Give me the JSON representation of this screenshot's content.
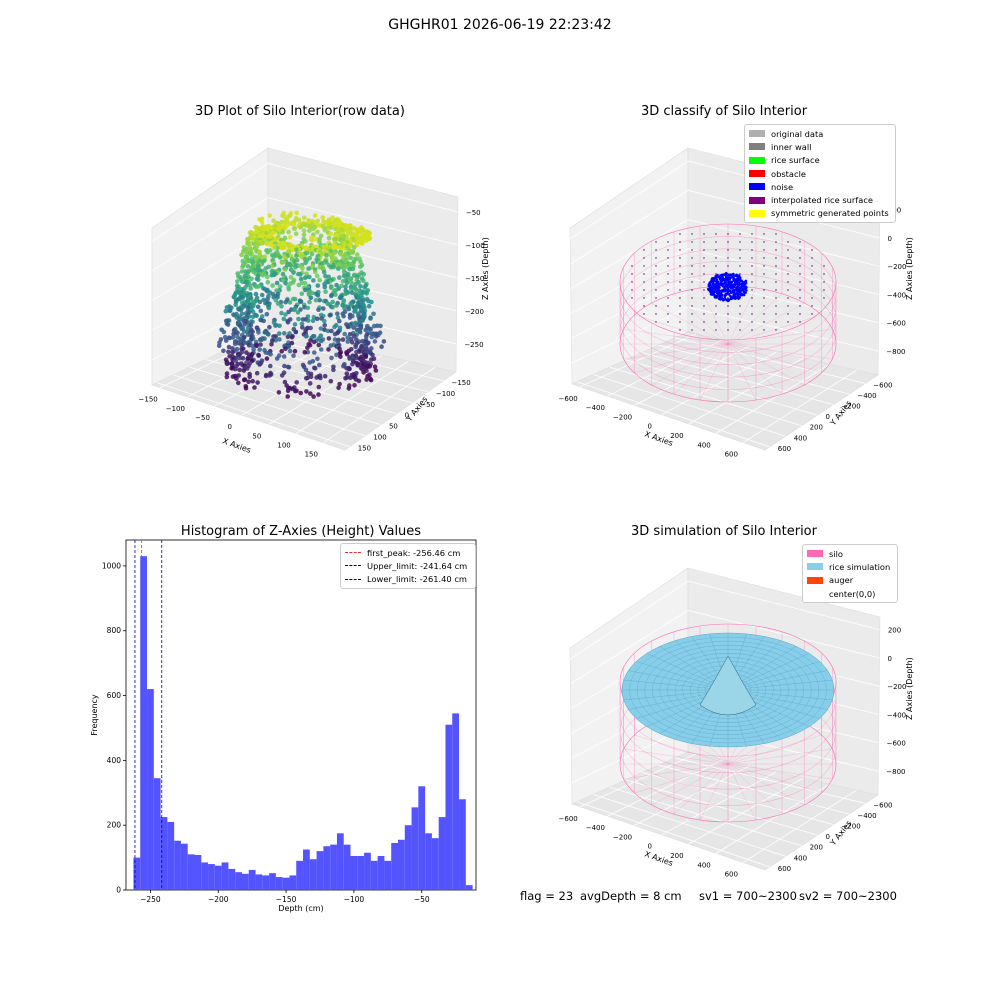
{
  "figure": {
    "suptitle": "GHGHR01 2026-06-19 22:23:42",
    "status": {
      "flag": "flag = 23",
      "avg_depth": "avgDepth = 8 cm",
      "sv1": "sv1 = 700~2300",
      "sv2": "sv2 = 700~2300"
    }
  },
  "colors": {
    "silo": "#ff69b4",
    "rice_simulation": "#87ceeb",
    "auger": "#ff4500",
    "hist_bar": "#4b4bff",
    "first_peak": "#e03030",
    "limits": "#0000aa"
  },
  "chart_data": [
    {
      "type": "scatter",
      "title": "3D Plot of Silo Interior(row data)",
      "xlabel": "X Axies",
      "ylabel": "Y Axies",
      "zlabel": "Z Axies (Depth)",
      "x_ticks": [
        "−150",
        "−100",
        "−50",
        "0",
        "50",
        "100",
        "150"
      ],
      "y_ticks": [
        "−150",
        "−100",
        "−50",
        "0",
        "50",
        "100",
        "150"
      ],
      "z_ticks": [
        "−50",
        "−100",
        "−150",
        "−200",
        "−250"
      ],
      "xlim": [
        -150,
        150
      ],
      "ylim": [
        -150,
        150
      ],
      "zlim": [
        -270,
        -30
      ],
      "colormap": "viridis"
    },
    {
      "type": "scatter",
      "title": "3D classify of Silo Interior",
      "xlabel": "X Axies",
      "ylabel": "Y Axies",
      "zlabel": "Z Axies (Depth)",
      "x_ticks": [
        "−600",
        "−400",
        "−200",
        "0",
        "200",
        "400",
        "600"
      ],
      "y_ticks": [
        "−600",
        "−400",
        "−200",
        "0",
        "200",
        "400",
        "600"
      ],
      "z_ticks": [
        "200",
        "0",
        "−200",
        "−400",
        "−600",
        "−800"
      ],
      "legend": [
        {
          "label": "original data",
          "color": "#b0b0b0"
        },
        {
          "label": "inner wall",
          "color": "#808080"
        },
        {
          "label": "rice surface",
          "color": "#00ff00"
        },
        {
          "label": "obstacle",
          "color": "#ff0000"
        },
        {
          "label": "noise",
          "color": "#0000ff"
        },
        {
          "label": "interpolated rice surface",
          "color": "#800080"
        },
        {
          "label": "symmetric generated points",
          "color": "#ffff00"
        }
      ]
    },
    {
      "type": "bar",
      "title": "Histogram of Z-Axies (Height) Values",
      "xlabel": "Depth (cm)",
      "ylabel": "Frequency",
      "xlim": [
        -268,
        -10
      ],
      "ylim": [
        0,
        1080
      ],
      "x_ticks": [
        -250,
        -200,
        -150,
        -100,
        -50
      ],
      "y_ticks": [
        0,
        200,
        400,
        600,
        800,
        1000
      ],
      "bin_width": 5,
      "bin_start": [
        -262.5,
        -257.5,
        -252.5,
        -247.5,
        -242.5,
        -237.5,
        -232.5,
        -227.5,
        -222.5,
        -217.5,
        -212.5,
        -207.5,
        -202.5,
        -197.5,
        -192.5,
        -187.5,
        -182.5,
        -177.5,
        -172.5,
        -167.5,
        -162.5,
        -157.5,
        -152.5,
        -147.5,
        -142.5,
        -137.5,
        -132.5,
        -127.5,
        -122.5,
        -117.5,
        -112.5,
        -107.5,
        -102.5,
        -97.5,
        -92.5,
        -87.5,
        -82.5,
        -77.5,
        -72.5,
        -67.5,
        -62.5,
        -57.5,
        -52.5,
        -47.5,
        -42.5,
        -37.5,
        -32.5,
        -27.5,
        -22.5,
        -17.5
      ],
      "values": [
        100,
        1030,
        620,
        345,
        225,
        210,
        152,
        143,
        110,
        108,
        85,
        80,
        75,
        85,
        65,
        55,
        50,
        62,
        48,
        45,
        52,
        40,
        38,
        45,
        90,
        125,
        95,
        120,
        135,
        140,
        175,
        140,
        105,
        105,
        115,
        90,
        105,
        90,
        145,
        155,
        200,
        255,
        320,
        175,
        160,
        225,
        510,
        545,
        280,
        15
      ],
      "vlines": [
        {
          "label": "first_peak: -256.46 cm",
          "x": -256.46,
          "color": "#e03030"
        },
        {
          "label": "Upper_limit: -241.64 cm",
          "x": -241.64,
          "color": "#0000aa"
        },
        {
          "label": "Lower_limit: -261.40 cm",
          "x": -261.4,
          "color": "#0000aa"
        }
      ]
    },
    {
      "type": "area",
      "title": "3D simulation of Silo Interior",
      "xlabel": "X Axies",
      "ylabel": "Y Axies",
      "zlabel": "Z Axies (Depth)",
      "x_ticks": [
        "−600",
        "−400",
        "−200",
        "0",
        "200",
        "400",
        "600"
      ],
      "y_ticks": [
        "−600",
        "−400",
        "−200",
        "0",
        "200",
        "400",
        "600"
      ],
      "z_ticks": [
        "200",
        "0",
        "−200",
        "−400",
        "−600",
        "−800"
      ],
      "legend": [
        {
          "label": "silo",
          "color": "#ff69b4"
        },
        {
          "label": "rice simulation",
          "color": "#87ceeb"
        },
        {
          "label": "auger",
          "color": "#ff4500"
        },
        {
          "label": "center(0,0)",
          "color": "#ffffff"
        }
      ]
    }
  ]
}
